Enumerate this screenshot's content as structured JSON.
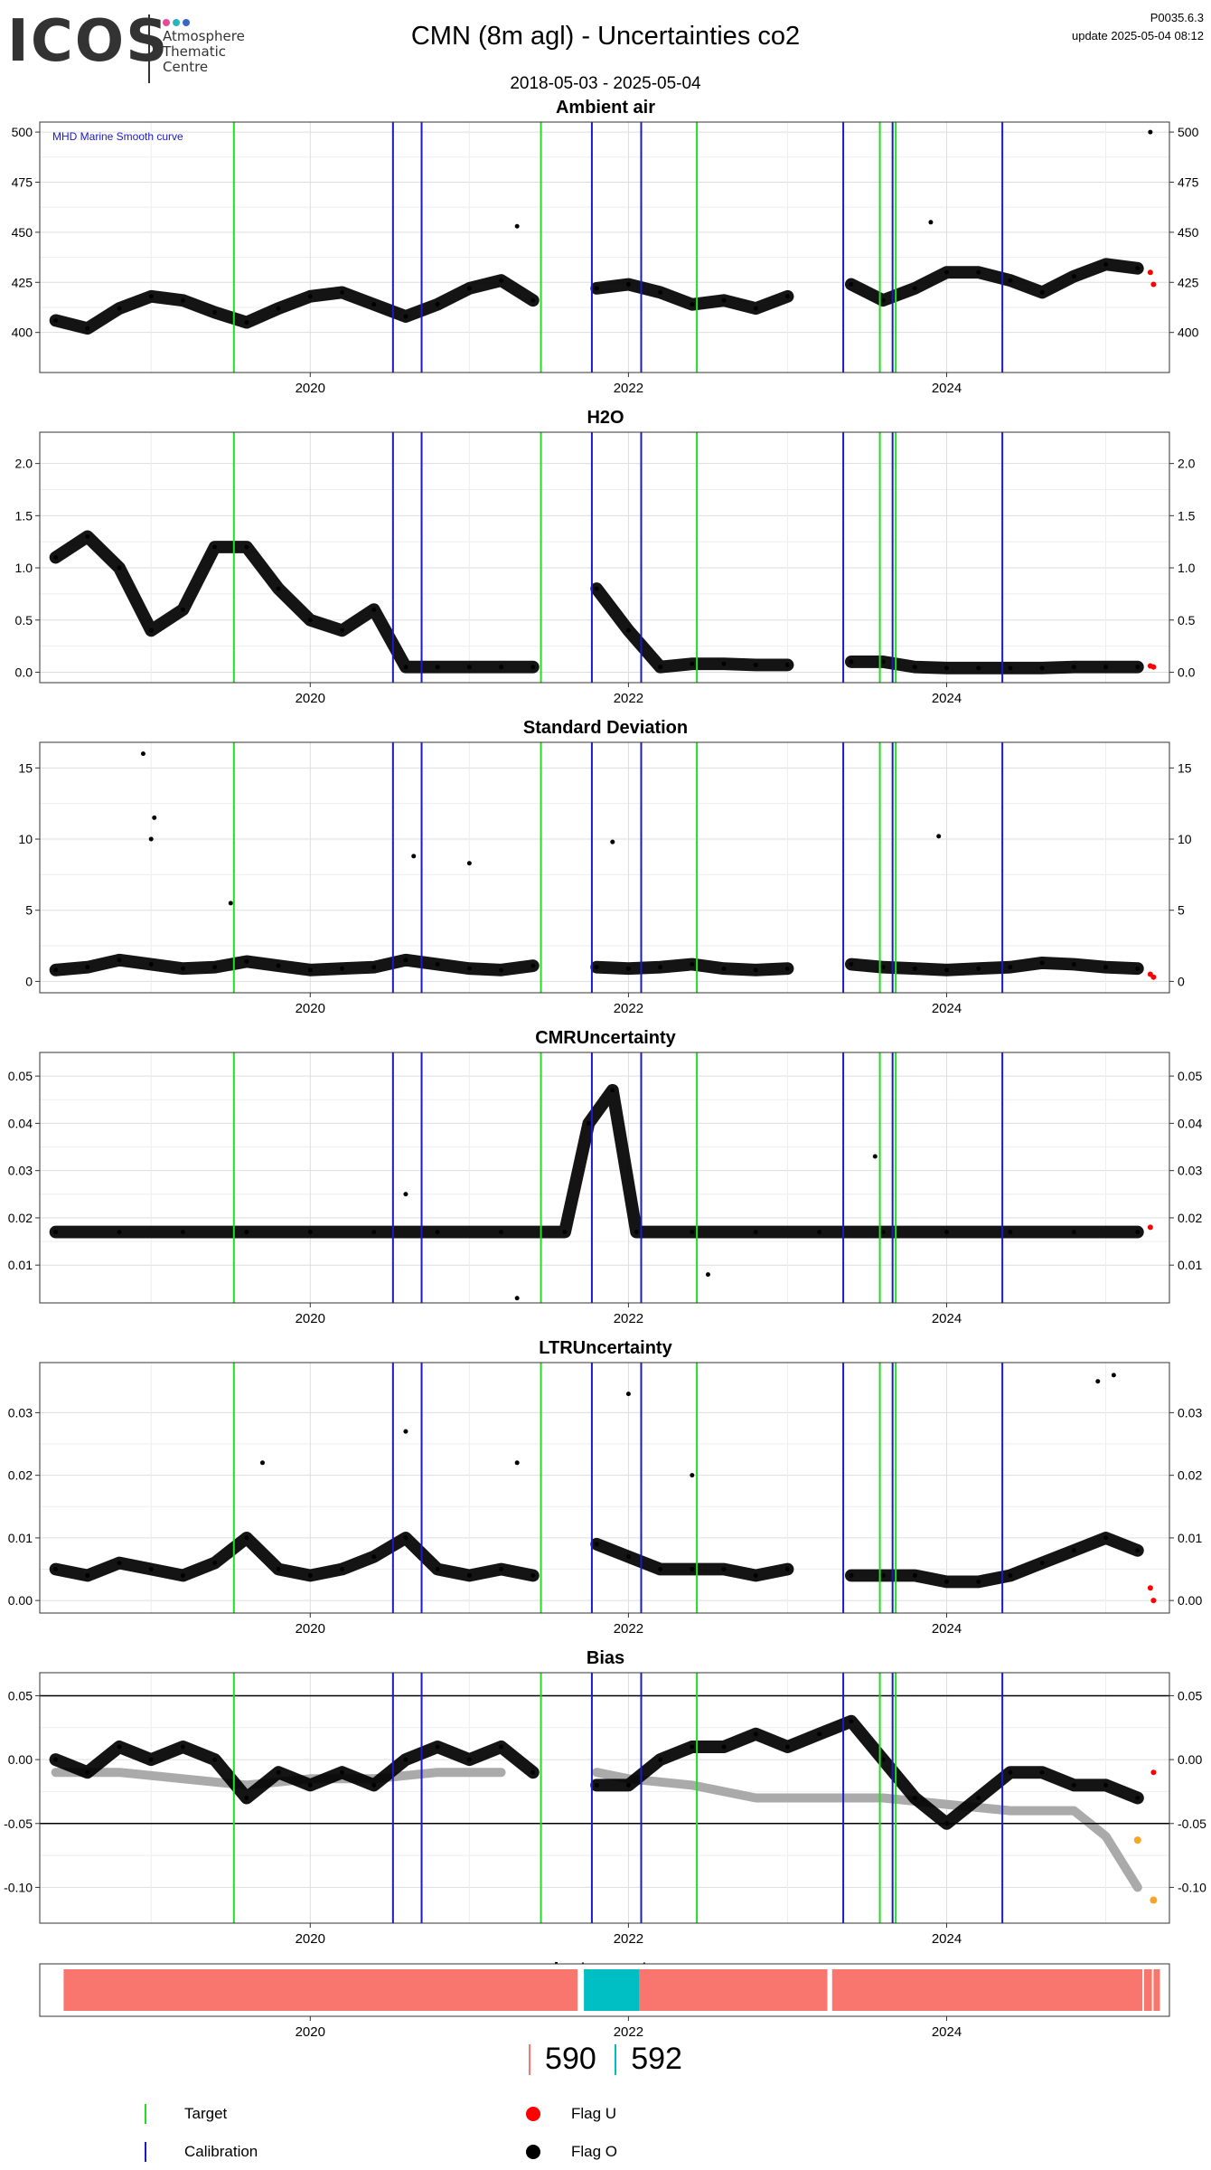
{
  "header": {
    "logo_text": "ICOS",
    "logo_sub": [
      "Atmosphere",
      "Thematic",
      "Centre"
    ],
    "logo_dot_colors": [
      "#e84a9a",
      "#2bb3c0",
      "#3a66c4"
    ],
    "title": "CMN  (8m agl) - Uncertainties co2",
    "date_range": "2018-05-03 - 2025-05-04",
    "version": "P0035.6.3",
    "update": "update  2025-05-04 08:12"
  },
  "colors": {
    "target": "#22dd22",
    "calibration": "#1a1acc",
    "flag_u": "#ff0000",
    "flag_o": "#000000",
    "smooth_curve": "#aaaaaa",
    "orange_points": "#f5a623",
    "instrument_590": "#f8766d",
    "instrument_592": "#00bfc4",
    "smooth_label": "#1a1acc"
  },
  "chart_data": [
    {
      "type": "scatter",
      "title": "Ambient air",
      "annotation": "MHD Marine Smooth curve",
      "ylim": [
        380,
        505
      ],
      "yticks": [
        400,
        425,
        450,
        475,
        500
      ],
      "xticks": [
        "2020",
        "2022",
        "2024"
      ],
      "grid": true,
      "series": [
        {
          "name": "Flag O",
          "x": [
            2018.4,
            2018.6,
            2018.8,
            2019.0,
            2019.2,
            2019.4,
            2019.6,
            2019.8,
            2020.0,
            2020.2,
            2020.4,
            2020.6,
            2020.8,
            2021.0,
            2021.2,
            2021.4,
            2021.6,
            2021.8,
            2022.0,
            2022.2,
            2022.4,
            2022.6,
            2022.8,
            2023.0,
            2023.2,
            2023.4,
            2023.6,
            2023.8,
            2024.0,
            2024.2,
            2024.4,
            2024.6,
            2024.8,
            2025.0,
            2025.2
          ],
          "y": [
            406,
            402,
            412,
            418,
            416,
            410,
            405,
            412,
            418,
            420,
            414,
            408,
            414,
            422,
            426,
            416,
            null,
            422,
            424,
            420,
            414,
            416,
            412,
            418,
            null,
            424,
            416,
            422,
            430,
            430,
            426,
            420,
            428,
            434,
            432
          ]
        },
        {
          "name": "Flag U",
          "x": [
            2025.28,
            2025.3
          ],
          "y": [
            430,
            424
          ]
        }
      ],
      "outliers": {
        "x": [
          2021.3,
          2023.9,
          2025.28
        ],
        "y": [
          453,
          455,
          500
        ]
      }
    },
    {
      "type": "scatter",
      "title": "H2O",
      "ylim": [
        -0.1,
        2.3
      ],
      "yticks": [
        0.0,
        0.5,
        1.0,
        1.5,
        2.0
      ],
      "xticks": [
        "2020",
        "2022",
        "2024"
      ],
      "grid": true,
      "series": [
        {
          "name": "Flag O",
          "x": [
            2018.4,
            2018.6,
            2018.8,
            2019.0,
            2019.2,
            2019.4,
            2019.6,
            2019.8,
            2020.0,
            2020.2,
            2020.4,
            2020.6,
            2020.8,
            2021.0,
            2021.2,
            2021.4,
            2021.6,
            2021.8,
            2022.0,
            2022.2,
            2022.4,
            2022.6,
            2022.8,
            2023.0,
            2023.2,
            2023.4,
            2023.6,
            2023.8,
            2024.0,
            2024.2,
            2024.4,
            2024.6,
            2024.8,
            2025.0,
            2025.2
          ],
          "y": [
            1.1,
            1.3,
            1.0,
            0.4,
            0.6,
            1.2,
            1.2,
            0.8,
            0.5,
            0.4,
            0.6,
            0.05,
            0.05,
            0.05,
            0.05,
            0.05,
            null,
            0.8,
            0.4,
            0.05,
            0.08,
            0.08,
            0.07,
            0.07,
            null,
            0.1,
            0.1,
            0.05,
            0.04,
            0.04,
            0.04,
            0.04,
            0.05,
            0.05,
            0.05
          ]
        },
        {
          "name": "Flag U",
          "x": [
            2025.28,
            2025.3
          ],
          "y": [
            0.06,
            0.05
          ]
        }
      ]
    },
    {
      "type": "scatter",
      "title": "Standard Deviation",
      "ylim": [
        -0.8,
        16.8
      ],
      "yticks": [
        0,
        5,
        10,
        15
      ],
      "xticks": [
        "2020",
        "2022",
        "2024"
      ],
      "grid": true,
      "series": [
        {
          "name": "Flag O",
          "x": [
            2018.4,
            2018.6,
            2018.8,
            2019.0,
            2019.2,
            2019.4,
            2019.6,
            2019.8,
            2020.0,
            2020.2,
            2020.4,
            2020.6,
            2020.8,
            2021.0,
            2021.2,
            2021.4,
            2021.6,
            2021.8,
            2022.0,
            2022.2,
            2022.4,
            2022.6,
            2022.8,
            2023.0,
            2023.2,
            2023.4,
            2023.6,
            2023.8,
            2024.0,
            2024.2,
            2024.4,
            2024.6,
            2024.8,
            2025.0,
            2025.2
          ],
          "y": [
            0.8,
            1.0,
            1.5,
            1.2,
            0.9,
            1.0,
            1.4,
            1.1,
            0.8,
            0.9,
            1.0,
            1.5,
            1.2,
            0.9,
            0.8,
            1.1,
            null,
            1.0,
            0.9,
            1.0,
            1.2,
            0.9,
            0.8,
            0.9,
            null,
            1.2,
            1.0,
            0.9,
            0.8,
            0.9,
            1.0,
            1.3,
            1.2,
            1.0,
            0.9
          ]
        },
        {
          "name": "Flag U",
          "x": [
            2025.28,
            2025.3
          ],
          "y": [
            0.5,
            0.3
          ]
        }
      ],
      "outliers": {
        "x": [
          2018.95,
          2019.02,
          2019.0,
          2019.5,
          2020.65,
          2021.0,
          2021.9,
          2023.95
        ],
        "y": [
          16,
          11.5,
          10,
          5.5,
          8.8,
          8.3,
          9.8,
          10.2
        ]
      }
    },
    {
      "type": "scatter",
      "title": "CMRUncertainty",
      "ylim": [
        0.002,
        0.055
      ],
      "yticks": [
        0.01,
        0.02,
        0.03,
        0.04,
        0.05
      ],
      "xticks": [
        "2020",
        "2022",
        "2024"
      ],
      "grid": true,
      "series": [
        {
          "name": "Flag O",
          "x": [
            2018.4,
            2018.8,
            2019.2,
            2019.6,
            2020.0,
            2020.4,
            2020.8,
            2021.2,
            2021.6,
            2021.75,
            2021.9,
            2022.05,
            2022.4,
            2022.8,
            2023.2,
            2023.6,
            2024.0,
            2024.4,
            2024.8,
            2025.2
          ],
          "y": [
            0.017,
            0.017,
            0.017,
            0.017,
            0.017,
            0.017,
            0.017,
            0.017,
            0.017,
            0.04,
            0.047,
            0.017,
            0.017,
            0.017,
            0.017,
            0.017,
            0.017,
            0.017,
            0.017,
            0.017
          ]
        },
        {
          "name": "Flag U",
          "x": [
            2025.28
          ],
          "y": [
            0.018
          ]
        }
      ],
      "outliers": {
        "x": [
          2020.6,
          2021.3,
          2023.55,
          2022.5
        ],
        "y": [
          0.025,
          0.003,
          0.033,
          0.008
        ]
      }
    },
    {
      "type": "scatter",
      "title": "LTRUncertainty",
      "ylim": [
        -0.002,
        0.038
      ],
      "yticks": [
        0.0,
        0.01,
        0.02,
        0.03
      ],
      "xticks": [
        "2020",
        "2022",
        "2024"
      ],
      "grid": true,
      "series": [
        {
          "name": "Flag O",
          "x": [
            2018.4,
            2018.6,
            2018.8,
            2019.0,
            2019.2,
            2019.4,
            2019.6,
            2019.8,
            2020.0,
            2020.2,
            2020.4,
            2020.6,
            2020.8,
            2021.0,
            2021.2,
            2021.4,
            2021.6,
            2021.8,
            2022.0,
            2022.2,
            2022.4,
            2022.6,
            2022.8,
            2023.0,
            2023.2,
            2023.4,
            2023.6,
            2023.8,
            2024.0,
            2024.2,
            2024.4,
            2024.6,
            2024.8,
            2025.0,
            2025.2
          ],
          "y": [
            0.005,
            0.004,
            0.006,
            0.005,
            0.004,
            0.006,
            0.01,
            0.005,
            0.004,
            0.005,
            0.007,
            0.01,
            0.005,
            0.004,
            0.005,
            0.004,
            null,
            0.009,
            0.007,
            0.005,
            0.005,
            0.005,
            0.004,
            0.005,
            null,
            0.004,
            0.004,
            0.004,
            0.003,
            0.003,
            0.004,
            0.006,
            0.008,
            0.01,
            0.008
          ]
        },
        {
          "name": "Flag U",
          "x": [
            2025.28,
            2025.3
          ],
          "y": [
            0.002,
            0.0
          ]
        }
      ],
      "outliers": {
        "x": [
          2019.7,
          2020.6,
          2021.3,
          2022.0,
          2022.4,
          2024.95,
          2025.05
        ],
        "y": [
          0.022,
          0.027,
          0.022,
          0.033,
          0.02,
          0.035,
          0.036
        ]
      }
    },
    {
      "type": "line",
      "title": "Bias",
      "ylim": [
        -0.128,
        0.068
      ],
      "yticks": [
        -0.1,
        -0.05,
        0.0,
        0.05
      ],
      "ref_lines": [
        0.05,
        -0.05
      ],
      "xticks": [
        "2020",
        "2022",
        "2024"
      ],
      "grid": true,
      "series": [
        {
          "name": "Flag O",
          "x": [
            2018.4,
            2018.6,
            2018.8,
            2019.0,
            2019.2,
            2019.4,
            2019.6,
            2019.8,
            2020.0,
            2020.2,
            2020.4,
            2020.6,
            2020.8,
            2021.0,
            2021.2,
            2021.4,
            2021.6,
            2021.8,
            2022.0,
            2022.2,
            2022.4,
            2022.6,
            2022.8,
            2023.0,
            2023.2,
            2023.4,
            2023.6,
            2023.8,
            2024.0,
            2024.2,
            2024.4,
            2024.6,
            2024.8,
            2025.0,
            2025.2
          ],
          "y": [
            0.0,
            -0.01,
            0.01,
            0.0,
            0.01,
            0.0,
            -0.03,
            -0.01,
            -0.02,
            -0.01,
            -0.02,
            0.0,
            0.01,
            0.0,
            0.01,
            -0.01,
            null,
            -0.02,
            -0.02,
            0.0,
            0.01,
            0.01,
            0.02,
            0.01,
            0.02,
            0.03,
            0.0,
            -0.03,
            -0.05,
            -0.03,
            -0.01,
            -0.01,
            -0.02,
            -0.02,
            -0.03
          ]
        },
        {
          "name": "Smooth",
          "x": [
            2018.4,
            2018.8,
            2019.2,
            2019.6,
            2020.0,
            2020.4,
            2020.8,
            2021.2,
            2021.6,
            2021.8,
            2022.0,
            2022.4,
            2022.8,
            2023.2,
            2023.6,
            2024.0,
            2024.4,
            2024.8,
            2025.0,
            2025.2
          ],
          "y": [
            -0.01,
            -0.01,
            -0.015,
            -0.02,
            -0.015,
            -0.015,
            -0.01,
            -0.01,
            null,
            -0.01,
            -0.015,
            -0.02,
            -0.03,
            -0.03,
            -0.03,
            -0.035,
            -0.04,
            -0.04,
            -0.06,
            -0.1
          ]
        },
        {
          "name": "Flag U",
          "x": [
            2025.3
          ],
          "y": [
            -0.01
          ]
        }
      ],
      "orange": {
        "x": [
          2025.2,
          2025.3
        ],
        "y": [
          -0.063,
          -0.11
        ]
      }
    },
    {
      "type": "timeline",
      "title": "Instruments",
      "xticks": [
        "2020",
        "2022",
        "2024"
      ],
      "segments": [
        {
          "instrument": "590",
          "start": 2018.45,
          "end": 2021.68
        },
        {
          "instrument": "592",
          "start": 2021.72,
          "end": 2022.07
        },
        {
          "instrument": "590",
          "start": 2022.07,
          "end": 2023.25
        },
        {
          "instrument": "590",
          "start": 2023.28,
          "end": 2025.23
        },
        {
          "instrument": "590",
          "start": 2025.24,
          "end": 2025.29
        },
        {
          "instrument": "590",
          "start": 2025.3,
          "end": 2025.34
        }
      ]
    }
  ],
  "events": {
    "target": [
      2019.52,
      2021.45,
      2022.43,
      2023.58,
      2023.68
    ],
    "calibration": [
      2020.52,
      2020.7,
      2021.77,
      2022.08,
      2023.35,
      2023.66,
      2024.35
    ]
  },
  "instrument_legend": [
    {
      "label": "590",
      "color": "#f8766d"
    },
    {
      "label": "592",
      "color": "#00bfc4"
    }
  ],
  "legend": {
    "target": "Target",
    "calibration": "Calibration",
    "flag_u": "Flag U",
    "flag_o": "Flag O"
  }
}
